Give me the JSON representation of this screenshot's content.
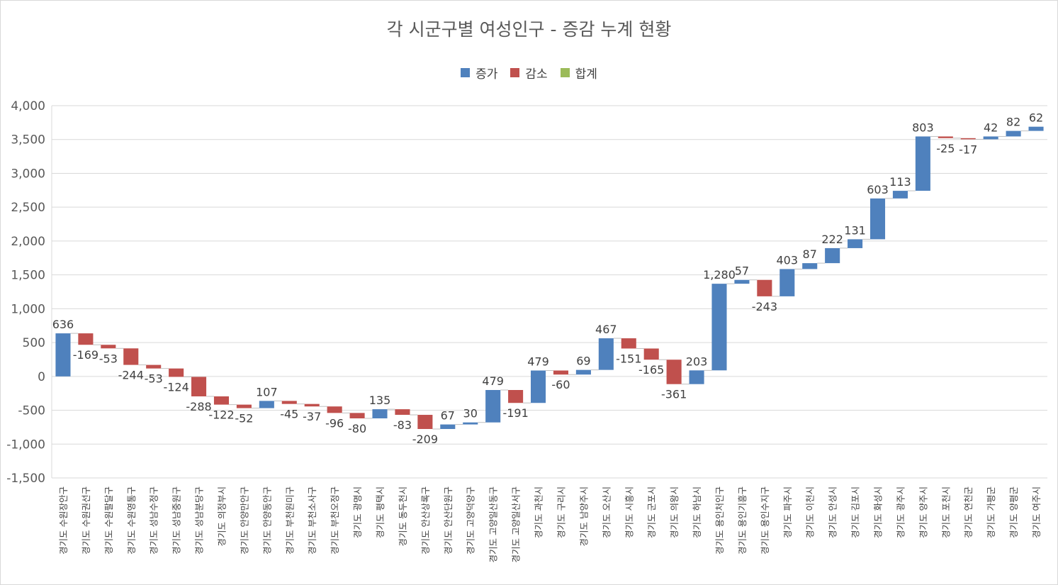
{
  "title": "각 시군구별 여성인구 - 증감 누계 현황",
  "legend": [
    {
      "name": "증가",
      "color": "#4f81bd"
    },
    {
      "name": "감소",
      "color": "#c0504d"
    },
    {
      "name": "합계",
      "color": "#9bbb59"
    }
  ],
  "chart_data": {
    "type": "bar",
    "subtype": "waterfall",
    "title": "각 시군구별 여성인구 - 증감 누계 현황",
    "ylim": [
      -1500,
      4000
    ],
    "yticks": [
      -1500,
      -1000,
      -500,
      0,
      500,
      1000,
      1500,
      2000,
      2500,
      3000,
      3500,
      4000
    ],
    "ytick_labels": [
      "-1,500",
      "-1,000",
      "-500",
      "0",
      "500",
      "1,000",
      "1,500",
      "2,000",
      "2,500",
      "3,000",
      "3,500",
      "4,000"
    ],
    "grid": true,
    "legend_position": "top",
    "categories": [
      "경기도 수원장안구",
      "경기도 수원권선구",
      "경기도 수원팔달구",
      "경기도 수원영통구",
      "경기도 성남수정구",
      "경기도 성남중원구",
      "경기도 성남분당구",
      "경기도 의정부시",
      "경기도 안양만안구",
      "경기도 안양동안구",
      "경기도 부천원미구",
      "경기도 부천소사구",
      "경기도 부천오정구",
      "경기도 광명시",
      "경기도 평택시",
      "경기도 동두천시",
      "경기도 안산상록구",
      "경기도 안산단원구",
      "경기도 고양덕양구",
      "경기도 고양일산동구",
      "경기도 고양일산서구",
      "경기도 과천시",
      "경기도 구리시",
      "경기도 남양주시",
      "경기도 오산시",
      "경기도 시흥시",
      "경기도 군포시",
      "경기도 의왕시",
      "경기도 하남시",
      "경기도 용인처인구",
      "경기도 용인기흥구",
      "경기도 용인수지구",
      "경기도 파주시",
      "경기도 이천시",
      "경기도 안성시",
      "경기도 김포시",
      "경기도 화성시",
      "경기도 광주시",
      "경기도 양주시",
      "경기도 포천시",
      "경기도 연천군",
      "경기도 가평군",
      "경기도 양평군",
      "경기도 여주시"
    ],
    "values": [
      636,
      -169,
      -53,
      -244,
      -53,
      -124,
      -288,
      -122,
      -52,
      107,
      -45,
      -37,
      -96,
      -80,
      135,
      -83,
      -209,
      67,
      30,
      479,
      -191,
      479,
      -60,
      69,
      467,
      -151,
      -165,
      -361,
      203,
      1280,
      57,
      -243,
      403,
      87,
      222,
      131,
      603,
      113,
      803,
      -25,
      -17,
      42,
      82,
      62
    ],
    "value_labels": [
      "636",
      "-169",
      "-53",
      "-244",
      "-53",
      "-124",
      "-288",
      "-122",
      "-52",
      "107",
      "-45",
      "-37",
      "-96",
      "-80",
      "135",
      "-83",
      "-209",
      "67",
      "30",
      "479",
      "-191",
      "479",
      "-60",
      "69",
      "467",
      "-151",
      "-165",
      "-361",
      "203",
      "1,280",
      "57",
      "-243",
      "403",
      "87",
      "222",
      "131",
      "603",
      "113",
      "803",
      "-25",
      "-17",
      "42",
      "82",
      "62"
    ]
  }
}
